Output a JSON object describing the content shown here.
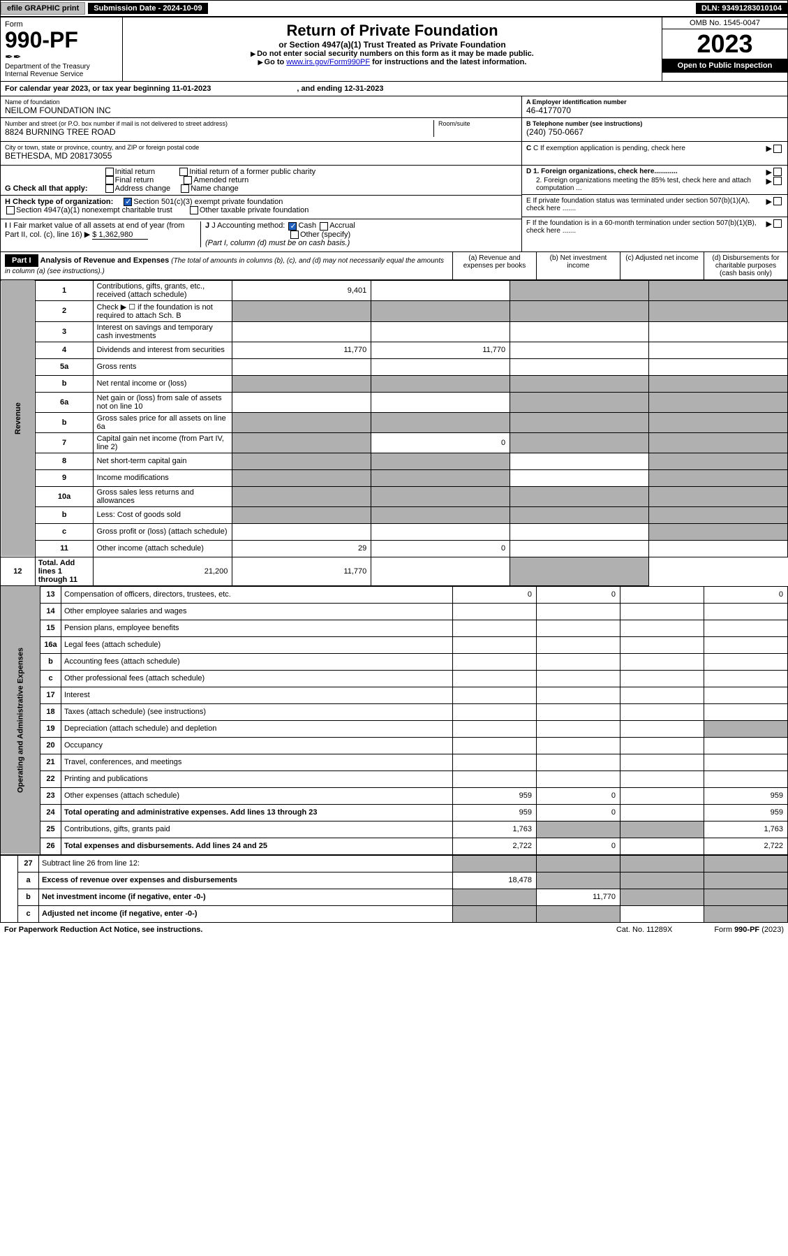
{
  "topbar": {
    "efile": "efile GRAPHIC print",
    "subm": "Submission Date - 2024-10-09",
    "dln": "DLN: 93491283010104"
  },
  "hdr": {
    "formword": "Form",
    "formno": "990-PF",
    "dept": "Department of the Treasury",
    "irs": "Internal Revenue Service",
    "title": "Return of Private Foundation",
    "sub": "or Section 4947(a)(1) Trust Treated as Private Foundation",
    "note1": "Do not enter social security numbers on this form as it may be made public.",
    "note2": "Go to ",
    "note2link": "www.irs.gov/Form990PF",
    "note2b": " for instructions and the latest information.",
    "omb": "OMB No. 1545-0047",
    "year": "2023",
    "open": "Open to Public Inspection"
  },
  "cal": {
    "text": "For calendar year 2023, or tax year beginning 11-01-2023",
    "end": ", and ending 12-31-2023"
  },
  "ident": {
    "nameLbl": "Name of foundation",
    "name": "NEILOM FOUNDATION INC",
    "addrLbl": "Number and street (or P.O. box number if mail is not delivered to street address)",
    "addr": "8824 BURNING TREE ROAD",
    "roomLbl": "Room/suite",
    "cityLbl": "City or town, state or province, country, and ZIP or foreign postal code",
    "city": "BETHESDA, MD  208173055",
    "aLbl": "A Employer identification number",
    "ein": "46-4177070",
    "bLbl": "B Telephone number (see instructions)",
    "tel": "(240) 750-0667",
    "cLbl": "C If exemption application is pending, check here",
    "d1": "D 1. Foreign organizations, check here............",
    "d2": "2. Foreign organizations meeting the 85% test, check here and attach computation ...",
    "eLbl": "E  If private foundation status was terminated under section 507(b)(1)(A), check here .......",
    "fLbl": "F  If the foundation is in a 60-month termination under section 507(b)(1)(B), check here ......."
  },
  "g": {
    "lbl": "G Check all that apply:",
    "o1": "Initial return",
    "o2": "Final return",
    "o3": "Address change",
    "o4": "Initial return of a former public charity",
    "o5": "Amended return",
    "o6": "Name change"
  },
  "h": {
    "lbl": "H Check type of organization:",
    "o1": "Section 501(c)(3) exempt private foundation",
    "o2": "Section 4947(a)(1) nonexempt charitable trust",
    "o3": "Other taxable private foundation"
  },
  "i": {
    "lbl": "I Fair market value of all assets at end of year (from Part II, col. (c), line 16)",
    "val": "$  1,362,980"
  },
  "j": {
    "lbl": "J Accounting method:",
    "o1": "Cash",
    "o2": "Accrual",
    "o3": "Other (specify)",
    "note": "(Part I, column (d) must be on cash basis.)"
  },
  "part1": {
    "title": "Part I",
    "desc": "Analysis of Revenue and Expenses",
    "desc2": "(The total of amounts in columns (b), (c), and (d) may not necessarily equal the amounts in column (a) (see instructions).)",
    "ca": "(a)   Revenue and expenses per books",
    "cb": "(b)   Net investment income",
    "cc": "(c)   Adjusted net income",
    "cd": "(d)   Disbursements for charitable purposes (cash basis only)"
  },
  "sideRev": "Revenue",
  "sideExp": "Operating and Administrative Expenses",
  "rows": [
    {
      "n": "1",
      "d": "Contributions, gifts, grants, etc., received (attach schedule)",
      "a": "9,401",
      "greyCD": true
    },
    {
      "n": "2",
      "d": "Check ▶ ☐ if the foundation is not required to attach Sch. B",
      "nov": true,
      "greyAll": true
    },
    {
      "n": "3",
      "d": "Interest on savings and temporary cash investments"
    },
    {
      "n": "4",
      "d": "Dividends and interest from securities",
      "a": "11,770",
      "b": "11,770"
    },
    {
      "n": "5a",
      "d": "Gross rents"
    },
    {
      "n": "b",
      "d": "Net rental income or (loss)",
      "greyAll": true
    },
    {
      "n": "6a",
      "d": "Net gain or (loss) from sale of assets not on line 10",
      "greyCD": true
    },
    {
      "n": "b",
      "d": "Gross sales price for all assets on line 6a",
      "greyAll": true
    },
    {
      "n": "7",
      "d": "Capital gain net income (from Part IV, line 2)",
      "b": "0",
      "greyA": true,
      "greyCD": true
    },
    {
      "n": "8",
      "d": "Net short-term capital gain",
      "greyAB": true,
      "greyD": true
    },
    {
      "n": "9",
      "d": "Income modifications",
      "greyAB": true,
      "greyD": true
    },
    {
      "n": "10a",
      "d": "Gross sales less returns and allowances",
      "greyAll": true
    },
    {
      "n": "b",
      "d": "Less: Cost of goods sold",
      "greyAll": true
    },
    {
      "n": "c",
      "d": "Gross profit or (loss) (attach schedule)",
      "greyD": true
    },
    {
      "n": "11",
      "d": "Other income (attach schedule)",
      "a": "29",
      "b": "0"
    },
    {
      "n": "12",
      "d": "Total. Add lines 1 through 11",
      "a": "21,200",
      "b": "11,770",
      "bold": true,
      "greyD": true
    }
  ],
  "erows": [
    {
      "n": "13",
      "d": "Compensation of officers, directors, trustees, etc.",
      "a": "0",
      "b": "0",
      "dd": "0"
    },
    {
      "n": "14",
      "d": "Other employee salaries and wages"
    },
    {
      "n": "15",
      "d": "Pension plans, employee benefits"
    },
    {
      "n": "16a",
      "d": "Legal fees (attach schedule)"
    },
    {
      "n": "b",
      "d": "Accounting fees (attach schedule)"
    },
    {
      "n": "c",
      "d": "Other professional fees (attach schedule)"
    },
    {
      "n": "17",
      "d": "Interest"
    },
    {
      "n": "18",
      "d": "Taxes (attach schedule) (see instructions)"
    },
    {
      "n": "19",
      "d": "Depreciation (attach schedule) and depletion",
      "greyD": true
    },
    {
      "n": "20",
      "d": "Occupancy"
    },
    {
      "n": "21",
      "d": "Travel, conferences, and meetings"
    },
    {
      "n": "22",
      "d": "Printing and publications"
    },
    {
      "n": "23",
      "d": "Other expenses (attach schedule)",
      "a": "959",
      "b": "0",
      "dd": "959"
    },
    {
      "n": "24",
      "d": "Total operating and administrative expenses. Add lines 13 through 23",
      "a": "959",
      "b": "0",
      "dd": "959",
      "bold": true
    },
    {
      "n": "25",
      "d": "Contributions, gifts, grants paid",
      "a": "1,763",
      "dd": "1,763",
      "greyBC": true
    },
    {
      "n": "26",
      "d": "Total expenses and disbursements. Add lines 24 and 25",
      "a": "2,722",
      "b": "0",
      "dd": "2,722",
      "bold": true
    }
  ],
  "rows27": [
    {
      "n": "27",
      "d": "Subtract line 26 from line 12:",
      "greyAll": true
    },
    {
      "n": "a",
      "d": "Excess of revenue over expenses and disbursements",
      "a": "18,478",
      "bold": true,
      "greyBCD": true
    },
    {
      "n": "b",
      "d": "Net investment income (if negative, enter -0-)",
      "b": "11,770",
      "bold": true,
      "greyA": true,
      "greyCD": true
    },
    {
      "n": "c",
      "d": "Adjusted net income (if negative, enter -0-)",
      "bold": true,
      "greyAB": true,
      "greyD": true
    }
  ],
  "footer": {
    "l": "For Paperwork Reduction Act Notice, see instructions.",
    "c": "Cat. No. 11289X",
    "r": "Form 990-PF (2023)"
  }
}
